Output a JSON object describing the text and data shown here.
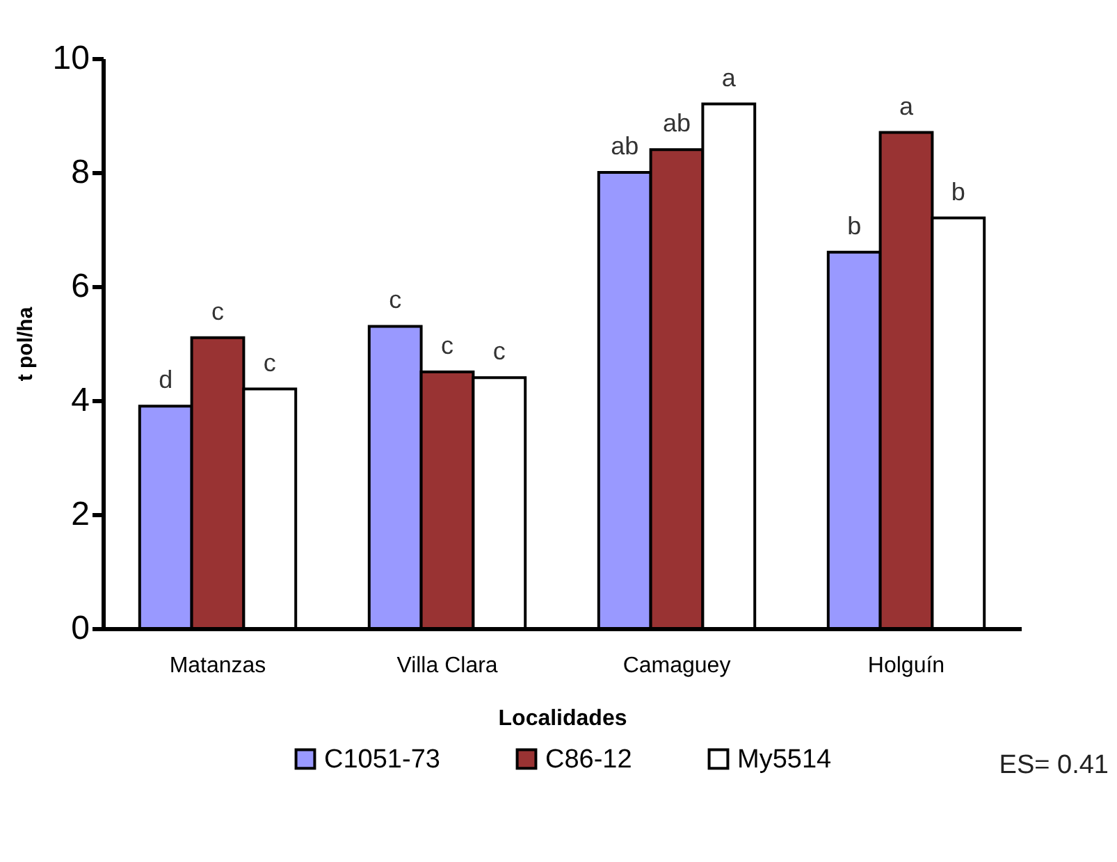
{
  "chart_data": {
    "type": "bar",
    "xlabel": "Localidades",
    "ylabel": "t pol/ha",
    "categories": [
      "Matanzas",
      "Villa Clara",
      "Camaguey",
      "Holguín"
    ],
    "series": [
      {
        "name": "C1051-73",
        "color": "#9999ff",
        "values": [
          3.9,
          5.3,
          8.0,
          6.6
        ],
        "value_labels": [
          "d",
          "c",
          "ab",
          "b"
        ]
      },
      {
        "name": "C86-12",
        "color": "#993333",
        "values": [
          5.1,
          4.5,
          8.4,
          8.7
        ],
        "value_labels": [
          "c",
          "c",
          "ab",
          "a"
        ]
      },
      {
        "name": "My5514",
        "color": "#ffffff",
        "values": [
          4.2,
          4.4,
          9.2,
          7.2
        ],
        "value_labels": [
          "c",
          "c",
          "a",
          "b"
        ]
      }
    ],
    "ylim": [
      0,
      10
    ],
    "yticks": [
      0,
      2,
      4,
      6,
      8,
      10
    ],
    "grid": false,
    "legend": "bottom",
    "annotations": [
      "ES= 0.41"
    ]
  }
}
